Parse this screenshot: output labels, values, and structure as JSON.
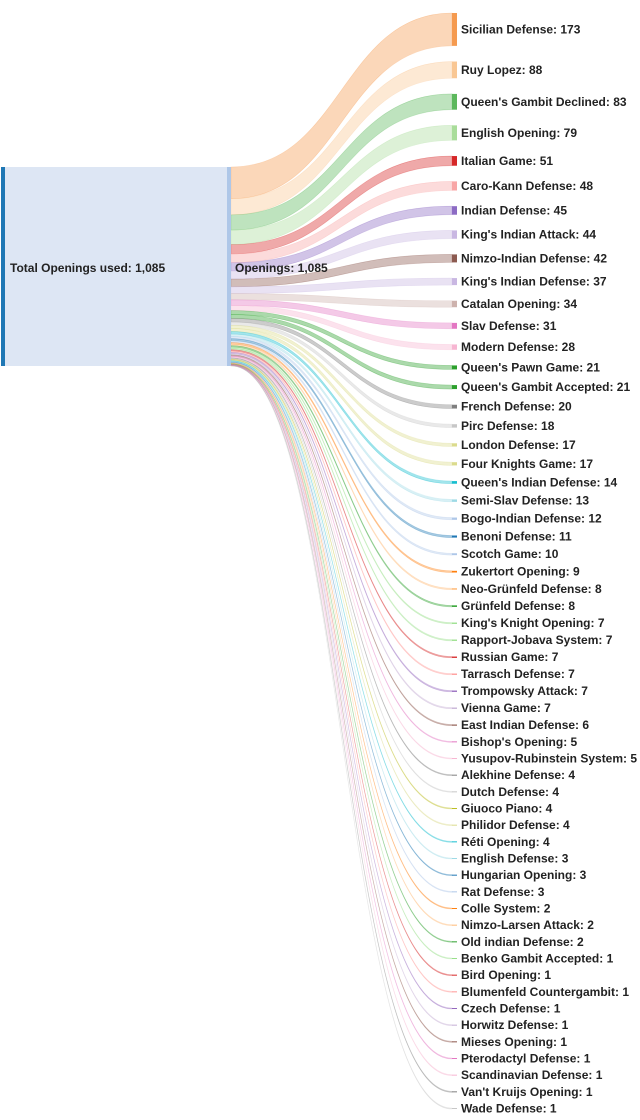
{
  "chart_data": {
    "type": "sankey",
    "source": {
      "name": "Total Openings used",
      "value": "1,085",
      "label": "Total Openings used: 1,085"
    },
    "middle": {
      "name": "Openings",
      "value": "1,085",
      "label": "Openings: 1,085"
    },
    "targets": [
      {
        "label": "Sicilian Defense: 173",
        "value": 173,
        "color": "#f59a4f"
      },
      {
        "label": "Ruy Lopez: 88",
        "value": 88,
        "color": "#f9c794"
      },
      {
        "label": "Queen's Gambit Declined: 83",
        "value": 83,
        "color": "#5cb85c"
      },
      {
        "label": "English Opening: 79",
        "value": 79,
        "color": "#a9dd9a"
      },
      {
        "label": "Italian Game: 51",
        "value": 51,
        "color": "#d62728"
      },
      {
        "label": "Caro-Kann Defense: 48",
        "value": 48,
        "color": "#f8a6a6"
      },
      {
        "label": "Indian Defense: 45",
        "value": 45,
        "color": "#8c6bc4"
      },
      {
        "label": "King's Indian Attack: 44",
        "value": 44,
        "color": "#c9b7e2"
      },
      {
        "label": "Nimzo-Indian Defense: 42",
        "value": 42,
        "color": "#8c5a50"
      },
      {
        "label": "King's Indian Defense: 37",
        "value": 37,
        "color": "#c9b7e2"
      },
      {
        "label": "Catalan Opening: 34",
        "value": 34,
        "color": "#cdb2ad"
      },
      {
        "label": "Slav Defense: 31",
        "value": 31,
        "color": "#e377c2"
      },
      {
        "label": "Modern Defense: 28",
        "value": 28,
        "color": "#f7b6d2"
      },
      {
        "label": "Queen's Pawn Game: 21",
        "value": 21,
        "color": "#2ca02c"
      },
      {
        "label": "Queen's Gambit Accepted: 21",
        "value": 21,
        "color": "#2ca02c"
      },
      {
        "label": "French Defense: 20",
        "value": 20,
        "color": "#7f7f7f"
      },
      {
        "label": "Pirc Defense: 18",
        "value": 18,
        "color": "#c7c7c7"
      },
      {
        "label": "London Defense: 17",
        "value": 17,
        "color": "#dbdb8d"
      },
      {
        "label": "Four Knights Game: 17",
        "value": 17,
        "color": "#dbdb8d"
      },
      {
        "label": "Queen's Indian Defense: 14",
        "value": 14,
        "color": "#17becf"
      },
      {
        "label": "Semi-Slav Defense: 13",
        "value": 13,
        "color": "#9edae5"
      },
      {
        "label": "Bogo-Indian Defense: 12",
        "value": 12,
        "color": "#aec7e8"
      },
      {
        "label": "Benoni Defense: 11",
        "value": 11,
        "color": "#1f77b4"
      },
      {
        "label": "Scotch Game: 10",
        "value": 10,
        "color": "#aec7e8"
      },
      {
        "label": "Zukertort Opening: 9",
        "value": 9,
        "color": "#ff7f0e"
      },
      {
        "label": "Neo-Grünfeld Defense: 8",
        "value": 8,
        "color": "#ffbb78"
      },
      {
        "label": "Grünfeld Defense: 8",
        "value": 8,
        "color": "#2ca02c"
      },
      {
        "label": "King's Knight Opening: 7",
        "value": 7,
        "color": "#98df8a"
      },
      {
        "label": "Rapport-Jobava System: 7",
        "value": 7,
        "color": "#98df8a"
      },
      {
        "label": "Russian Game: 7",
        "value": 7,
        "color": "#d62728"
      },
      {
        "label": "Tarrasch Defense: 7",
        "value": 7,
        "color": "#ff9896"
      },
      {
        "label": "Trompowsky Attack: 7",
        "value": 7,
        "color": "#9467bd"
      },
      {
        "label": "Vienna Game: 7",
        "value": 7,
        "color": "#c5b0d5"
      },
      {
        "label": "East Indian Defense: 6",
        "value": 6,
        "color": "#8c564b"
      },
      {
        "label": "Bishop's Opening: 5",
        "value": 5,
        "color": "#e377c2"
      },
      {
        "label": "Yusupov-Rubinstein System: 5",
        "value": 5,
        "color": "#f7b6d2"
      },
      {
        "label": "Alekhine Defense: 4",
        "value": 4,
        "color": "#7f7f7f"
      },
      {
        "label": "Dutch Defense: 4",
        "value": 4,
        "color": "#c7c7c7"
      },
      {
        "label": "Giuoco Piano: 4",
        "value": 4,
        "color": "#bcbd22"
      },
      {
        "label": "Philidor Defense: 4",
        "value": 4,
        "color": "#dbdb8d"
      },
      {
        "label": "Réti Opening: 4",
        "value": 4,
        "color": "#17becf"
      },
      {
        "label": "English Defense: 3",
        "value": 3,
        "color": "#9edae5"
      },
      {
        "label": "Hungarian Opening: 3",
        "value": 3,
        "color": "#1f77b4"
      },
      {
        "label": "Rat Defense: 3",
        "value": 3,
        "color": "#aec7e8"
      },
      {
        "label": "Colle System: 2",
        "value": 2,
        "color": "#ff7f0e"
      },
      {
        "label": "Nimzo-Larsen Attack: 2",
        "value": 2,
        "color": "#ffbb78"
      },
      {
        "label": "Old indian Defense: 2",
        "value": 2,
        "color": "#2ca02c"
      },
      {
        "label": "Benko Gambit Accepted: 1",
        "value": 1,
        "color": "#98df8a"
      },
      {
        "label": "Bird Opening: 1",
        "value": 1,
        "color": "#d62728"
      },
      {
        "label": "Blumenfeld Countergambit: 1",
        "value": 1,
        "color": "#ff9896"
      },
      {
        "label": "Czech Defense: 1",
        "value": 1,
        "color": "#9467bd"
      },
      {
        "label": "Horwitz Defense: 1",
        "value": 1,
        "color": "#c5b0d5"
      },
      {
        "label": "Mieses Opening: 1",
        "value": 1,
        "color": "#8c564b"
      },
      {
        "label": "Pterodactyl Defense: 1",
        "value": 1,
        "color": "#e377c2"
      },
      {
        "label": "Scandinavian Defense: 1",
        "value": 1,
        "color": "#f7b6d2"
      },
      {
        "label": "Van't Kruijs Opening: 1",
        "value": 1,
        "color": "#7f7f7f"
      },
      {
        "label": "Wade Defense: 1",
        "value": 1,
        "color": "#c7c7c7"
      }
    ],
    "colors": {
      "root_bar": "#1f77b4",
      "root_fill": "#dde6f4",
      "mid_bar": "#aec7e8"
    }
  }
}
